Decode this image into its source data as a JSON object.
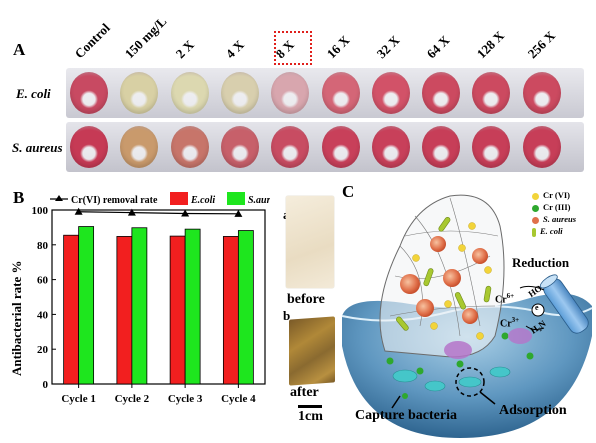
{
  "panel_a": {
    "letter": "A",
    "columns": [
      "Control",
      "150 mg/L",
      "2 X",
      "4 X",
      "8 X",
      "16 X",
      "32 X",
      "64 X",
      "128 X",
      "256 X"
    ],
    "highlighted_column": "8 X",
    "highlight_color": "#e0201c",
    "rows": [
      {
        "label": "E. coli",
        "wells": [
          "#c84a62",
          "#d8d0a4",
          "#dcd8b0",
          "#d8cfae",
          "#d8a6ae",
          "#d46677",
          "#d25268",
          "#cc4a60",
          "#cc4a60",
          "#cc4a60"
        ]
      },
      {
        "label": "S. aureus",
        "wells": [
          "#c63a55",
          "#c99a6c",
          "#c7756a",
          "#c7606a",
          "#c84c62",
          "#c8405a",
          "#c8405a",
          "#c73e58",
          "#c73e58",
          "#c73e58"
        ]
      }
    ]
  },
  "panel_b": {
    "letter": "B",
    "legend": {
      "line": "Cr(VI) removal rate",
      "bar1": "E.coli",
      "bar2": "S.aureus"
    },
    "colors": {
      "bar1": "#f21f1f",
      "bar2": "#1ee61e",
      "line": "#000000"
    },
    "inset_labels": {
      "a": "a",
      "b": "b",
      "before": "before",
      "after": "after",
      "scale": "1cm"
    }
  },
  "chart_data": {
    "type": "bar",
    "categories": [
      "Cycle 1",
      "Cycle 2",
      "Cycle 3",
      "Cycle 4"
    ],
    "series": [
      {
        "name": "E.coli",
        "values": [
          85.5,
          84.8,
          85.0,
          84.8
        ]
      },
      {
        "name": "S.aureus",
        "values": [
          90.5,
          89.8,
          89.0,
          88.2
        ]
      },
      {
        "name": "Cr(VI) removal rate",
        "type": "line",
        "values": [
          99.0,
          98.5,
          98.0,
          97.8
        ]
      }
    ],
    "title": "",
    "xlabel": "",
    "ylabel": "Antibacterial rate %",
    "ylim": [
      0,
      100
    ],
    "yticks": [
      0,
      20,
      40,
      60,
      80,
      100
    ],
    "legend_position": "top",
    "grid": false
  },
  "panel_c": {
    "letter": "C",
    "legend": [
      {
        "label": "Cr (VI)",
        "color": "#f2d43a"
      },
      {
        "label": "Cr (III)",
        "color": "#2ea82e"
      },
      {
        "label": "S. aureus",
        "color": "#e0704a"
      },
      {
        "label": "E. coli",
        "color": "#a8c830"
      }
    ],
    "labels": {
      "reduction": "Reduction",
      "cr6": "Cr",
      "cr6_sup": "6+",
      "cr3": "Cr",
      "cr3_sup": "3+",
      "ho": "HO",
      "h2n": "H₂N",
      "e": "e",
      "capture": "Capture bacteria",
      "adsorption": "Adsorption"
    }
  }
}
